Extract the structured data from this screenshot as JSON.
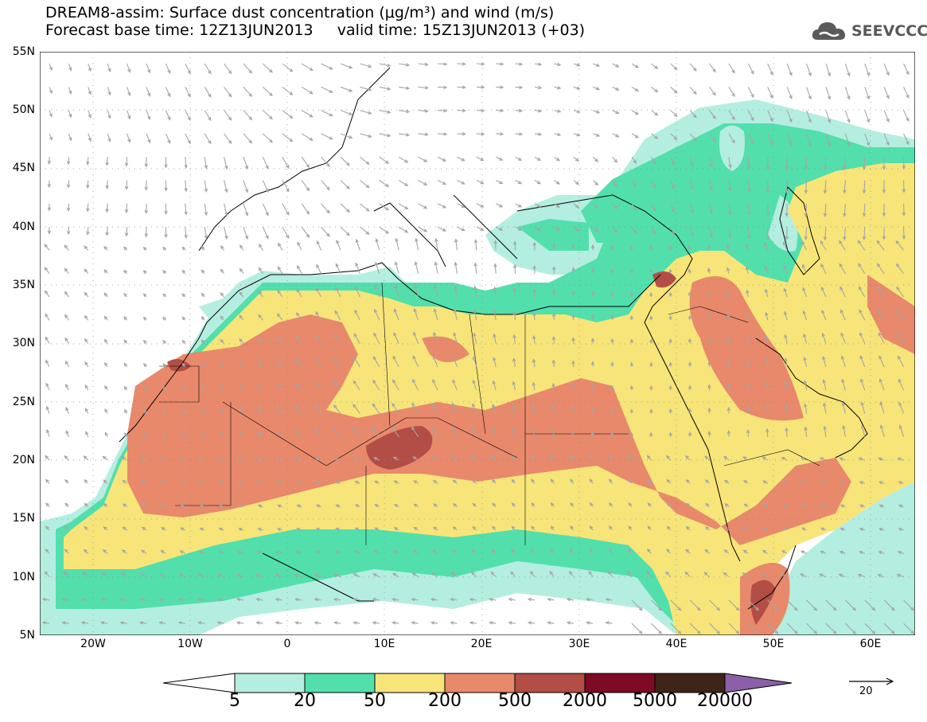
{
  "header": {
    "title_line1": "DREAM8-assim: Surface dust concentration (μg/m³) and wind (m/s)",
    "title_line2": "Forecast base time: 12Z13JUN2013     valid time: 15Z13JUN2013 (+03)",
    "logo_text": "SEEVCCC"
  },
  "axes": {
    "lat_labels": [
      "55N",
      "50N",
      "45N",
      "40N",
      "35N",
      "30N",
      "25N",
      "20N",
      "15N",
      "10N",
      "5N"
    ],
    "lon_labels": [
      "20W",
      "10W",
      "0",
      "10E",
      "20E",
      "30E",
      "40E",
      "50E",
      "60E"
    ],
    "lon_range": [
      -25,
      65
    ],
    "lat_range": [
      5,
      55
    ]
  },
  "legend": {
    "labels": [
      "5",
      "20",
      "50",
      "200",
      "500",
      "2000",
      "5000",
      "20000"
    ],
    "colors": [
      "#ffffff",
      "#b4eee0",
      "#52dfac",
      "#f7e57a",
      "#e8896b",
      "#b24e45",
      "#7e0a24",
      "#3f2418",
      "#8c60a8"
    ],
    "reference_vector_label": "20"
  },
  "map_data": {
    "colors": {
      "level_5": "#b4eee0",
      "level_20": "#52dfac",
      "level_50": "#f7e57a",
      "level_200": "#e8896b",
      "level_500": "#b24e45",
      "wind_arrow": "#a5a5a5",
      "coast": "#000000",
      "grid": "#888888"
    }
  }
}
